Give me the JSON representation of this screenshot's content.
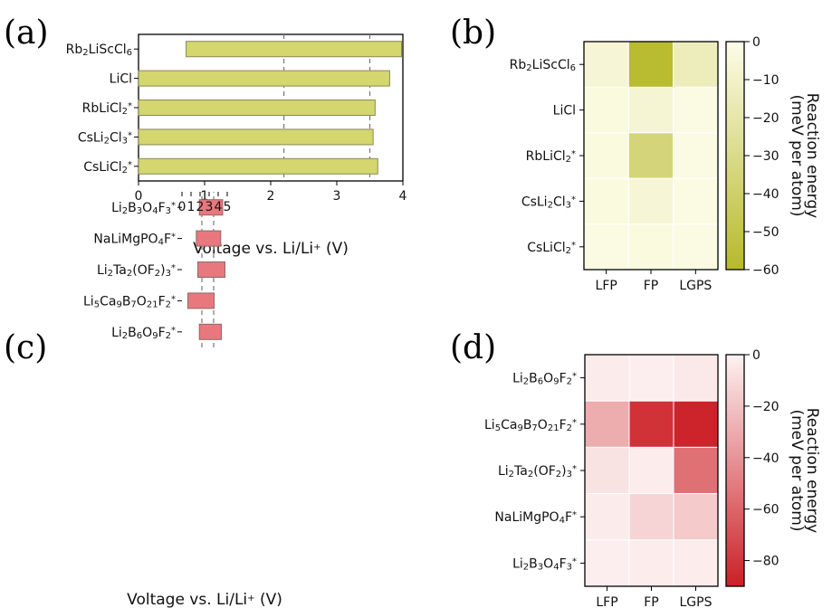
{
  "chart_data": [
    {
      "id": "a",
      "panel_label": "(a)",
      "type": "bar",
      "orientation": "horizontal",
      "categories": [
        {
          "base": "Rb",
          "parts": [
            [
              "Rb",
              ""
            ],
            [
              "2",
              "sub"
            ],
            [
              "LiScCl",
              ""
            ],
            [
              "6",
              "sub"
            ]
          ]
        },
        {
          "base": "LiCl",
          "parts": [
            [
              "LiCl",
              ""
            ]
          ]
        },
        {
          "base": "RbLiCl2*",
          "parts": [
            [
              "RbLiCl",
              ""
            ],
            [
              "2",
              "sub"
            ],
            [
              "*",
              "sup"
            ]
          ]
        },
        {
          "base": "CsLi2Cl3*",
          "parts": [
            [
              "CsLi",
              ""
            ],
            [
              "2",
              "sub"
            ],
            [
              "Cl",
              ""
            ],
            [
              "3",
              "sub"
            ],
            [
              "*",
              "sup"
            ]
          ]
        },
        {
          "base": "CsLiCl2*",
          "parts": [
            [
              "CsLiCl",
              ""
            ],
            [
              "2",
              "sub"
            ],
            [
              "*",
              "sup"
            ]
          ]
        }
      ],
      "ranges": [
        [
          0.72,
          3.98
        ],
        [
          0.0,
          3.8
        ],
        [
          0.0,
          3.58
        ],
        [
          0.0,
          3.55
        ],
        [
          0.0,
          3.62
        ]
      ],
      "xlim": [
        0,
        4
      ],
      "xticks": [
        "0",
        "1",
        "2",
        "3",
        "4"
      ],
      "xlabel_parts": [
        [
          "Voltage vs. Li/Li",
          ""
        ],
        [
          "+",
          "sup"
        ],
        [
          " (V)",
          ""
        ]
      ],
      "vlines": [
        2.2,
        3.5
      ],
      "bar_color": "#d4d66e",
      "bar_edge": "#8a8a5a"
    },
    {
      "id": "b",
      "panel_label": "(b)",
      "type": "heatmap",
      "rows": [
        {
          "parts": [
            [
              "Rb",
              ""
            ],
            [
              "2",
              "sub"
            ],
            [
              "LiScCl",
              ""
            ],
            [
              "6",
              "sub"
            ]
          ]
        },
        {
          "parts": [
            [
              "LiCl",
              ""
            ]
          ]
        },
        {
          "parts": [
            [
              "RbLiCl",
              ""
            ],
            [
              "2",
              "sub"
            ],
            [
              "*",
              "sup"
            ]
          ]
        },
        {
          "parts": [
            [
              "CsLi",
              ""
            ],
            [
              "2",
              "sub"
            ],
            [
              "Cl",
              ""
            ],
            [
              "3",
              "sub"
            ],
            [
              "*",
              "sup"
            ]
          ]
        },
        {
          "parts": [
            [
              "CsLiCl",
              ""
            ],
            [
              "2",
              "sub"
            ],
            [
              "*",
              "sup"
            ]
          ]
        }
      ],
      "columns": [
        "LFP",
        "FP",
        "LGPS"
      ],
      "values": [
        [
          -6,
          -58,
          -14
        ],
        [
          -3,
          -7,
          -1.5
        ],
        [
          -3,
          -35,
          -1.5
        ],
        [
          -3,
          -6,
          -1.5
        ],
        [
          -1.5,
          -3,
          -1.5
        ]
      ],
      "vmin": -60,
      "vmax": 0,
      "colorbar_ticks": [
        "0",
        "−10",
        "−20",
        "−30",
        "−40",
        "−50",
        "−60"
      ],
      "colorbar_label": "Reaction energy",
      "colorbar_label2": "(meV per atom)",
      "color_low": "#b7b92a",
      "color_high": "#fdfde9"
    },
    {
      "id": "c",
      "panel_label": "(c)",
      "type": "bar",
      "orientation": "horizontal",
      "categories": [
        {
          "parts": [
            [
              "Li",
              ""
            ],
            [
              "2",
              "sub"
            ],
            [
              "B",
              ""
            ],
            [
              "6",
              "sub"
            ],
            [
              "O",
              ""
            ],
            [
              "9",
              "sub"
            ],
            [
              "F",
              ""
            ],
            [
              "2",
              "sub"
            ],
            [
              "*",
              "sup"
            ]
          ]
        },
        {
          "parts": [
            [
              "Li",
              ""
            ],
            [
              "5",
              "sub"
            ],
            [
              "Ca",
              ""
            ],
            [
              "9",
              "sub"
            ],
            [
              "B",
              ""
            ],
            [
              "7",
              "sub"
            ],
            [
              "O",
              ""
            ],
            [
              "21",
              "sub"
            ],
            [
              "F",
              ""
            ],
            [
              "2",
              "sub"
            ],
            [
              "*",
              "sup"
            ]
          ]
        },
        {
          "parts": [
            [
              "Li",
              ""
            ],
            [
              "2",
              "sub"
            ],
            [
              "Ta",
              ""
            ],
            [
              "2",
              "sub"
            ],
            [
              "(OF",
              ""
            ],
            [
              "2",
              "sub"
            ],
            [
              ")",
              ""
            ],
            [
              "3",
              "sub"
            ],
            [
              "*",
              "sup"
            ]
          ]
        },
        {
          "parts": [
            [
              "NaLiMgPO",
              ""
            ],
            [
              "4",
              "sub"
            ],
            [
              "F",
              ""
            ],
            [
              "*",
              "sup"
            ]
          ]
        },
        {
          "parts": [
            [
              "Li",
              ""
            ],
            [
              "2",
              "sub"
            ],
            [
              "B",
              ""
            ],
            [
              "3",
              "sub"
            ],
            [
              "O",
              ""
            ],
            [
              "4",
              "sub"
            ],
            [
              "F",
              ""
            ],
            [
              "3",
              "sub"
            ],
            [
              "*",
              "sup"
            ]
          ]
        }
      ],
      "ranges": [
        [
          1.92,
          4.35
        ],
        [
          0.65,
          3.55
        ],
        [
          1.75,
          4.75
        ],
        [
          1.58,
          4.28
        ],
        [
          1.92,
          4.5
        ]
      ],
      "xlim": [
        0,
        5
      ],
      "xticks": [
        "0",
        "1",
        "2",
        "3",
        "4",
        "5"
      ],
      "xlabel_parts": [
        [
          "Voltage vs. Li/Li",
          ""
        ],
        [
          "+",
          "sup"
        ],
        [
          " (V)",
          ""
        ]
      ],
      "vlines": [
        2.2,
        3.5
      ],
      "bar_color": "#e8787d",
      "bar_edge": "#8a6a6a"
    },
    {
      "id": "d",
      "panel_label": "(d)",
      "type": "heatmap",
      "rows": [
        {
          "parts": [
            [
              "Li",
              ""
            ],
            [
              "2",
              "sub"
            ],
            [
              "B",
              ""
            ],
            [
              "6",
              "sub"
            ],
            [
              "O",
              ""
            ],
            [
              "9",
              "sub"
            ],
            [
              "F",
              ""
            ],
            [
              "2",
              "sub"
            ],
            [
              "*",
              "sup"
            ]
          ]
        },
        {
          "parts": [
            [
              "Li",
              ""
            ],
            [
              "5",
              "sub"
            ],
            [
              "Ca",
              ""
            ],
            [
              "9",
              "sub"
            ],
            [
              "B",
              ""
            ],
            [
              "7",
              "sub"
            ],
            [
              "O",
              ""
            ],
            [
              "21",
              "sub"
            ],
            [
              "F",
              ""
            ],
            [
              "2",
              "sub"
            ],
            [
              "*",
              "sup"
            ]
          ]
        },
        {
          "parts": [
            [
              "Li",
              ""
            ],
            [
              "2",
              "sub"
            ],
            [
              "Ta",
              ""
            ],
            [
              "2",
              "sub"
            ],
            [
              "(OF",
              ""
            ],
            [
              "2",
              "sub"
            ],
            [
              ")",
              ""
            ],
            [
              "3",
              "sub"
            ],
            [
              "*",
              "sup"
            ]
          ]
        },
        {
          "parts": [
            [
              "NaLiMgPO",
              ""
            ],
            [
              "4",
              "sub"
            ],
            [
              "F",
              ""
            ],
            [
              "*",
              "sup"
            ]
          ]
        },
        {
          "parts": [
            [
              "Li",
              ""
            ],
            [
              "2",
              "sub"
            ],
            [
              "B",
              ""
            ],
            [
              "3",
              "sub"
            ],
            [
              "O",
              ""
            ],
            [
              "4",
              "sub"
            ],
            [
              "F",
              ""
            ],
            [
              "3",
              "sub"
            ],
            [
              "*",
              "sup"
            ]
          ]
        }
      ],
      "columns": [
        "LFP",
        "FP",
        "LGPS"
      ],
      "values": [
        [
          -3,
          -1.5,
          -4
        ],
        [
          -30,
          -82,
          -88
        ],
        [
          -7,
          -2.5,
          -55
        ],
        [
          -3,
          -13,
          -17
        ],
        [
          -1.5,
          -2.5,
          -2.5
        ]
      ],
      "vmin": -90,
      "vmax": 0,
      "colorbar_ticks": [
        "0",
        "−20",
        "−40",
        "−60",
        "−80"
      ],
      "colorbar_tick_values": [
        0,
        -20,
        -40,
        -60,
        -80
      ],
      "colorbar_label": "Reaction energy",
      "colorbar_label2": "(meV per atom)",
      "color_low": "#cc1f26",
      "color_high": "#fdf2f2"
    }
  ]
}
